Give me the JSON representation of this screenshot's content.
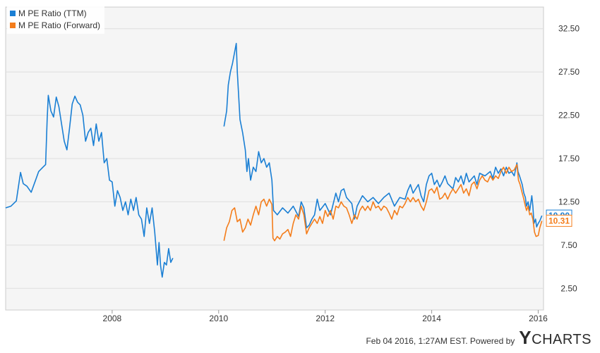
{
  "chart_data": {
    "type": "line",
    "title": "",
    "xlabel": "",
    "ylabel": "",
    "xlim": [
      2006.0,
      2016.1
    ],
    "ylim": [
      0,
      35
    ],
    "x_ticks": [
      "2008",
      "2010",
      "2012",
      "2014",
      "2016"
    ],
    "y_ticks": [
      "2.50",
      "7.50",
      "12.50",
      "17.50",
      "22.50",
      "27.50",
      "32.50"
    ],
    "grid": "horizontal",
    "legend_position": "top-left",
    "series": [
      {
        "name": "M PE Ratio (TTM)",
        "color": "#1a7fd4",
        "last_value_label": "10.90",
        "points": [
          [
            2006.0,
            11.8
          ],
          [
            2006.1,
            12.0
          ],
          [
            2006.2,
            12.6
          ],
          [
            2006.28,
            15.9
          ],
          [
            2006.33,
            14.6
          ],
          [
            2006.4,
            14.3
          ],
          [
            2006.48,
            13.6
          ],
          [
            2006.55,
            14.8
          ],
          [
            2006.62,
            16.0
          ],
          [
            2006.7,
            16.5
          ],
          [
            2006.75,
            16.8
          ],
          [
            2006.78,
            22.0
          ],
          [
            2006.8,
            24.8
          ],
          [
            2006.85,
            23.0
          ],
          [
            2006.9,
            22.3
          ],
          [
            2006.95,
            24.6
          ],
          [
            2007.0,
            23.5
          ],
          [
            2007.05,
            21.5
          ],
          [
            2007.1,
            19.5
          ],
          [
            2007.15,
            18.5
          ],
          [
            2007.2,
            21.0
          ],
          [
            2007.25,
            23.8
          ],
          [
            2007.3,
            24.7
          ],
          [
            2007.35,
            24.0
          ],
          [
            2007.4,
            23.7
          ],
          [
            2007.45,
            22.5
          ],
          [
            2007.5,
            19.5
          ],
          [
            2007.55,
            20.5
          ],
          [
            2007.6,
            21.0
          ],
          [
            2007.65,
            19.0
          ],
          [
            2007.7,
            21.5
          ],
          [
            2007.75,
            19.5
          ],
          [
            2007.8,
            20.5
          ],
          [
            2007.85,
            17.0
          ],
          [
            2007.9,
            17.5
          ],
          [
            2007.95,
            15.0
          ],
          [
            2008.0,
            14.8
          ],
          [
            2008.05,
            12.0
          ],
          [
            2008.1,
            13.8
          ],
          [
            2008.15,
            13.0
          ],
          [
            2008.2,
            11.5
          ],
          [
            2008.25,
            12.5
          ],
          [
            2008.3,
            11.0
          ],
          [
            2008.35,
            12.8
          ],
          [
            2008.4,
            11.5
          ],
          [
            2008.45,
            13.0
          ],
          [
            2008.5,
            11.0
          ],
          [
            2008.55,
            10.5
          ],
          [
            2008.6,
            8.5
          ],
          [
            2008.65,
            11.8
          ],
          [
            2008.7,
            10.0
          ],
          [
            2008.75,
            11.8
          ],
          [
            2008.8,
            9.0
          ],
          [
            2008.85,
            5.2
          ],
          [
            2008.88,
            7.8
          ],
          [
            2008.91,
            5.1
          ],
          [
            2008.94,
            3.8
          ],
          [
            2008.98,
            5.5
          ],
          [
            2009.02,
            5.2
          ],
          [
            2009.06,
            7.1
          ],
          [
            2009.1,
            5.5
          ],
          [
            2009.14,
            6.0
          ],
          [
            2010.1,
            21.2
          ],
          [
            2010.15,
            23.0
          ],
          [
            2010.18,
            26.0
          ],
          [
            2010.22,
            27.5
          ],
          [
            2010.26,
            28.5
          ],
          [
            2010.3,
            29.8
          ],
          [
            2010.33,
            30.8
          ],
          [
            2010.35,
            27.5
          ],
          [
            2010.4,
            22.0
          ],
          [
            2010.45,
            20.5
          ],
          [
            2010.5,
            18.5
          ],
          [
            2010.53,
            16.0
          ],
          [
            2010.56,
            17.5
          ],
          [
            2010.6,
            15.0
          ],
          [
            2010.65,
            16.5
          ],
          [
            2010.7,
            16.0
          ],
          [
            2010.75,
            18.3
          ],
          [
            2010.8,
            17.0
          ],
          [
            2010.85,
            17.5
          ],
          [
            2010.9,
            16.5
          ],
          [
            2010.95,
            17.0
          ],
          [
            2011.0,
            15.0
          ],
          [
            2011.03,
            11.5
          ],
          [
            2011.1,
            11.0
          ],
          [
            2011.2,
            11.8
          ],
          [
            2011.3,
            11.2
          ],
          [
            2011.4,
            12.0
          ],
          [
            2011.5,
            10.8
          ],
          [
            2011.55,
            12.5
          ],
          [
            2011.6,
            11.8
          ],
          [
            2011.65,
            9.5
          ],
          [
            2011.7,
            9.8
          ],
          [
            2011.75,
            10.5
          ],
          [
            2011.8,
            11.0
          ],
          [
            2011.85,
            12.8
          ],
          [
            2011.9,
            11.5
          ],
          [
            2012.0,
            12.3
          ],
          [
            2012.1,
            11.0
          ],
          [
            2012.2,
            13.5
          ],
          [
            2012.25,
            12.5
          ],
          [
            2012.3,
            13.8
          ],
          [
            2012.35,
            14.0
          ],
          [
            2012.4,
            13.0
          ],
          [
            2012.5,
            12.3
          ],
          [
            2012.55,
            10.5
          ],
          [
            2012.6,
            12.0
          ],
          [
            2012.7,
            13.2
          ],
          [
            2012.8,
            12.5
          ],
          [
            2012.9,
            13.0
          ],
          [
            2013.0,
            12.3
          ],
          [
            2013.1,
            13.0
          ],
          [
            2013.2,
            13.5
          ],
          [
            2013.3,
            12.0
          ],
          [
            2013.4,
            13.0
          ],
          [
            2013.5,
            12.8
          ],
          [
            2013.55,
            13.8
          ],
          [
            2013.6,
            14.5
          ],
          [
            2013.65,
            13.5
          ],
          [
            2013.7,
            14.0
          ],
          [
            2013.75,
            14.5
          ],
          [
            2013.8,
            13.2
          ],
          [
            2013.85,
            12.5
          ],
          [
            2013.9,
            14.5
          ],
          [
            2013.95,
            15.5
          ],
          [
            2014.0,
            15.8
          ],
          [
            2014.05,
            14.5
          ],
          [
            2014.1,
            15.0
          ],
          [
            2014.15,
            14.2
          ],
          [
            2014.2,
            14.8
          ],
          [
            2014.25,
            15.5
          ],
          [
            2014.3,
            14.6
          ],
          [
            2014.4,
            14.0
          ],
          [
            2014.45,
            15.3
          ],
          [
            2014.5,
            14.8
          ],
          [
            2014.55,
            15.5
          ],
          [
            2014.6,
            14.5
          ],
          [
            2014.65,
            15.8
          ],
          [
            2014.7,
            14.8
          ],
          [
            2014.8,
            15.5
          ],
          [
            2014.85,
            14.5
          ],
          [
            2014.9,
            15.8
          ],
          [
            2015.0,
            15.5
          ],
          [
            2015.1,
            16.0
          ],
          [
            2015.15,
            15.2
          ],
          [
            2015.2,
            16.5
          ],
          [
            2015.25,
            15.8
          ],
          [
            2015.3,
            16.3
          ],
          [
            2015.35,
            15.5
          ],
          [
            2015.4,
            16.5
          ],
          [
            2015.45,
            15.8
          ],
          [
            2015.5,
            16.0
          ],
          [
            2015.55,
            15.5
          ],
          [
            2015.6,
            17.0
          ],
          [
            2015.62,
            16.0
          ],
          [
            2015.65,
            15.5
          ],
          [
            2015.7,
            14.5
          ],
          [
            2015.73,
            13.5
          ],
          [
            2015.76,
            13.0
          ],
          [
            2015.78,
            12.0
          ],
          [
            2015.81,
            12.5
          ],
          [
            2015.84,
            11.5
          ],
          [
            2015.86,
            12.3
          ],
          [
            2015.88,
            13.2
          ],
          [
            2015.9,
            12.0
          ],
          [
            2015.92,
            10.0
          ],
          [
            2015.95,
            10.5
          ],
          [
            2015.97,
            9.6
          ],
          [
            2016.0,
            10.0
          ],
          [
            2016.03,
            10.3
          ],
          [
            2016.07,
            10.9
          ]
        ]
      },
      {
        "name": "M PE Ratio (Forward)",
        "color": "#f47d1b",
        "last_value_label": "10.31",
        "points": [
          [
            2010.1,
            8.0
          ],
          [
            2010.15,
            9.5
          ],
          [
            2010.2,
            10.2
          ],
          [
            2010.25,
            11.5
          ],
          [
            2010.3,
            11.8
          ],
          [
            2010.35,
            10.2
          ],
          [
            2010.4,
            10.5
          ],
          [
            2010.45,
            9.0
          ],
          [
            2010.5,
            9.5
          ],
          [
            2010.55,
            10.5
          ],
          [
            2010.6,
            9.8
          ],
          [
            2010.65,
            11.0
          ],
          [
            2010.7,
            12.0
          ],
          [
            2010.75,
            11.0
          ],
          [
            2010.8,
            12.5
          ],
          [
            2010.85,
            12.8
          ],
          [
            2010.9,
            12.0
          ],
          [
            2010.95,
            12.8
          ],
          [
            2011.0,
            12.2
          ],
          [
            2011.02,
            8.3
          ],
          [
            2011.05,
            8.0
          ],
          [
            2011.1,
            8.5
          ],
          [
            2011.15,
            8.2
          ],
          [
            2011.2,
            8.8
          ],
          [
            2011.25,
            9.0
          ],
          [
            2011.3,
            9.3
          ],
          [
            2011.35,
            8.5
          ],
          [
            2011.4,
            10.0
          ],
          [
            2011.45,
            11.0
          ],
          [
            2011.5,
            10.5
          ],
          [
            2011.55,
            12.0
          ],
          [
            2011.6,
            11.0
          ],
          [
            2011.65,
            8.8
          ],
          [
            2011.7,
            9.5
          ],
          [
            2011.75,
            10.0
          ],
          [
            2011.8,
            10.5
          ],
          [
            2011.85,
            10.0
          ],
          [
            2011.9,
            10.8
          ],
          [
            2011.95,
            10.0
          ],
          [
            2012.0,
            11.5
          ],
          [
            2012.05,
            10.8
          ],
          [
            2012.1,
            11.5
          ],
          [
            2012.15,
            10.5
          ],
          [
            2012.2,
            12.0
          ],
          [
            2012.25,
            11.8
          ],
          [
            2012.3,
            12.5
          ],
          [
            2012.35,
            12.0
          ],
          [
            2012.4,
            11.8
          ],
          [
            2012.45,
            11.0
          ],
          [
            2012.5,
            10.0
          ],
          [
            2012.55,
            11.0
          ],
          [
            2012.6,
            10.5
          ],
          [
            2012.65,
            11.5
          ],
          [
            2012.7,
            12.0
          ],
          [
            2012.75,
            11.5
          ],
          [
            2012.8,
            12.0
          ],
          [
            2012.85,
            11.5
          ],
          [
            2012.9,
            12.5
          ],
          [
            2012.95,
            11.8
          ],
          [
            2013.0,
            12.0
          ],
          [
            2013.05,
            11.5
          ],
          [
            2013.1,
            12.0
          ],
          [
            2013.15,
            11.8
          ],
          [
            2013.2,
            11.2
          ],
          [
            2013.25,
            10.5
          ],
          [
            2013.3,
            11.5
          ],
          [
            2013.35,
            11.0
          ],
          [
            2013.4,
            12.0
          ],
          [
            2013.45,
            11.8
          ],
          [
            2013.5,
            12.3
          ],
          [
            2013.55,
            13.0
          ],
          [
            2013.6,
            12.5
          ],
          [
            2013.65,
            13.0
          ],
          [
            2013.7,
            12.5
          ],
          [
            2013.75,
            12.8
          ],
          [
            2013.8,
            12.0
          ],
          [
            2013.85,
            11.5
          ],
          [
            2013.9,
            12.5
          ],
          [
            2013.95,
            13.8
          ],
          [
            2014.0,
            14.0
          ],
          [
            2014.05,
            13.5
          ],
          [
            2014.1,
            14.2
          ],
          [
            2014.15,
            12.8
          ],
          [
            2014.2,
            13.0
          ],
          [
            2014.25,
            13.5
          ],
          [
            2014.3,
            12.8
          ],
          [
            2014.35,
            13.5
          ],
          [
            2014.4,
            14.0
          ],
          [
            2014.45,
            13.5
          ],
          [
            2014.5,
            14.0
          ],
          [
            2014.55,
            14.5
          ],
          [
            2014.6,
            13.5
          ],
          [
            2014.65,
            14.0
          ],
          [
            2014.7,
            13.2
          ],
          [
            2014.75,
            14.5
          ],
          [
            2014.8,
            14.8
          ],
          [
            2014.85,
            14.0
          ],
          [
            2014.9,
            15.0
          ],
          [
            2014.95,
            15.5
          ],
          [
            2015.0,
            15.0
          ],
          [
            2015.05,
            14.8
          ],
          [
            2015.1,
            15.5
          ],
          [
            2015.15,
            15.0
          ],
          [
            2015.2,
            15.5
          ],
          [
            2015.25,
            15.2
          ],
          [
            2015.3,
            16.0
          ],
          [
            2015.35,
            16.5
          ],
          [
            2015.4,
            15.8
          ],
          [
            2015.45,
            16.5
          ],
          [
            2015.5,
            16.0
          ],
          [
            2015.55,
            16.2
          ],
          [
            2015.6,
            16.8
          ],
          [
            2015.63,
            15.0
          ],
          [
            2015.66,
            14.5
          ],
          [
            2015.7,
            13.5
          ],
          [
            2015.73,
            12.8
          ],
          [
            2015.76,
            12.0
          ],
          [
            2015.78,
            11.5
          ],
          [
            2015.81,
            12.0
          ],
          [
            2015.84,
            11.0
          ],
          [
            2015.87,
            11.2
          ],
          [
            2015.9,
            10.5
          ],
          [
            2015.93,
            9.0
          ],
          [
            2015.96,
            8.5
          ],
          [
            2016.0,
            8.6
          ],
          [
            2016.03,
            9.5
          ],
          [
            2016.07,
            10.3
          ]
        ]
      }
    ]
  },
  "footer": {
    "timestamp": "Feb 04 2016, 1:27AM EST.",
    "powered_by": "Powered by",
    "brand_y": "Y",
    "brand_rest": "CHARTS"
  }
}
